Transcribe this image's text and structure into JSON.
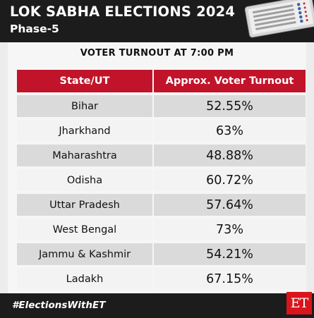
{
  "header": {
    "title": "LOK SABHA ELECTIONS 2024",
    "subtitle": "Phase-5"
  },
  "table": {
    "title": "VOTER TURNOUT AT 7:00 PM",
    "columns": [
      "State/UT",
      "Approx. Voter Turnout"
    ],
    "rows": [
      {
        "state": "Bihar",
        "turnout": "52.55%"
      },
      {
        "state": "Jharkhand",
        "turnout": "63%"
      },
      {
        "state": "Maharashtra",
        "turnout": "48.88%"
      },
      {
        "state": "Odisha",
        "turnout": "60.72%"
      },
      {
        "state": "Uttar Pradesh",
        "turnout": "57.64%"
      },
      {
        "state": "West Bengal",
        "turnout": "73%"
      },
      {
        "state": "Jammu & Kashmir",
        "turnout": "54.21%"
      },
      {
        "state": "Ladakh",
        "turnout": "67.15%"
      }
    ]
  },
  "footer": {
    "hashtag": "#ElectionsWithET",
    "logo_text": "ET"
  },
  "colors": {
    "header_bg": "#1c1c1c",
    "accent_red": "#c1142a",
    "logo_red": "#d9151c",
    "row_shaded": "#dadada",
    "row_plain": "#f3f3f3"
  },
  "icons": {
    "header_graphic": "voting-machine-icon"
  }
}
